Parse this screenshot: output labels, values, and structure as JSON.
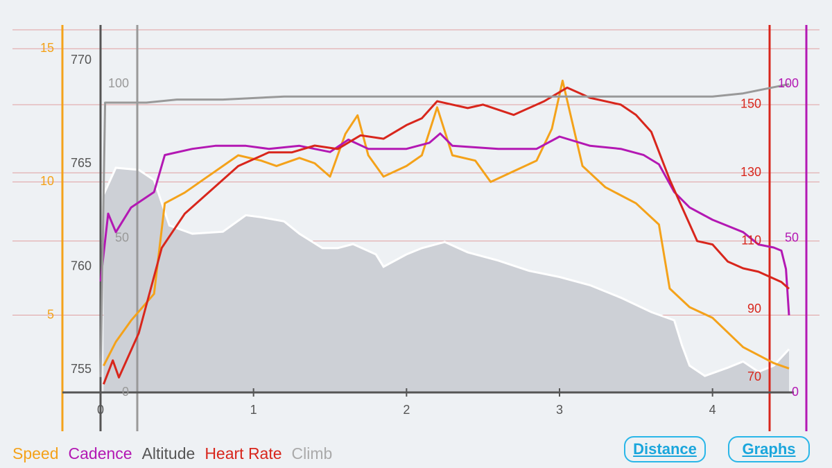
{
  "legend": [
    {
      "label": "Speed",
      "color": "#f4a21a"
    },
    {
      "label": "Cadence",
      "color": "#b318b3"
    },
    {
      "label": "Altitude",
      "color": "#555555"
    },
    {
      "label": "Heart Rate",
      "color": "#d8261c"
    },
    {
      "label": "Climb",
      "color": "#aaaaaa"
    }
  ],
  "buttons": {
    "distance": "Distance",
    "graphs": "Graphs"
  },
  "colors": {
    "speed": "#f4a21a",
    "cadence": "#b318b3",
    "altitude_axis": "#555555",
    "heart_rate": "#d8261c",
    "climb": "#999999",
    "altitude_fill": "#cdd0d6",
    "gridline": "#e0a0a0"
  },
  "chart_data": {
    "type": "line",
    "x": {
      "label": "",
      "unit": "km",
      "range": [
        0,
        4.5
      ],
      "ticks": [
        0,
        1,
        2,
        3,
        4
      ],
      "tick_labels": [
        "0",
        "1",
        "2",
        "3",
        "4"
      ]
    },
    "axes": {
      "speed": {
        "range": [
          2.1,
          16.1
        ],
        "ticks": [
          5,
          10,
          15
        ],
        "tick_labels": [
          "5",
          "10",
          "15"
        ]
      },
      "altitude": {
        "range": [
          753.9,
          772
        ],
        "ticks": [
          755,
          760,
          765,
          770
        ],
        "tick_labels": [
          "755",
          "760",
          "765",
          "770"
        ]
      },
      "climb": {
        "range": [
          0,
          121
        ],
        "ticks": [
          0,
          50,
          100
        ],
        "tick_labels": [
          "0",
          "50",
          "100"
        ]
      },
      "heart_rate": {
        "range": [
          65.6,
          175
        ],
        "ticks": [
          70,
          90,
          110,
          130,
          150
        ],
        "tick_labels": [
          "70",
          "90",
          "110",
          "130",
          "150"
        ]
      },
      "cadence": {
        "range": [
          0,
          121
        ],
        "ticks": [
          0,
          50,
          100
        ],
        "tick_labels": [
          "0",
          "50",
          "100"
        ]
      }
    },
    "series": [
      {
        "name": "Speed",
        "axis": "speed",
        "points": [
          [
            0.02,
            3.1
          ],
          [
            0.1,
            4.0
          ],
          [
            0.2,
            4.8
          ],
          [
            0.35,
            5.8
          ],
          [
            0.42,
            9.2
          ],
          [
            0.55,
            9.6
          ],
          [
            0.7,
            10.2
          ],
          [
            0.9,
            11.0
          ],
          [
            1.05,
            10.8
          ],
          [
            1.15,
            10.6
          ],
          [
            1.3,
            10.9
          ],
          [
            1.4,
            10.7
          ],
          [
            1.5,
            10.2
          ],
          [
            1.6,
            11.8
          ],
          [
            1.68,
            12.5
          ],
          [
            1.75,
            11.0
          ],
          [
            1.85,
            10.2
          ],
          [
            2.0,
            10.6
          ],
          [
            2.1,
            11.0
          ],
          [
            2.2,
            12.8
          ],
          [
            2.3,
            11.0
          ],
          [
            2.45,
            10.8
          ],
          [
            2.55,
            10.0
          ],
          [
            2.7,
            10.4
          ],
          [
            2.85,
            10.8
          ],
          [
            2.95,
            12.0
          ],
          [
            3.02,
            13.8
          ],
          [
            3.15,
            10.6
          ],
          [
            3.3,
            9.8
          ],
          [
            3.5,
            9.2
          ],
          [
            3.65,
            8.4
          ],
          [
            3.72,
            6.0
          ],
          [
            3.85,
            5.3
          ],
          [
            4.0,
            4.9
          ],
          [
            4.2,
            3.8
          ],
          [
            4.4,
            3.2
          ],
          [
            4.5,
            3.0
          ]
        ]
      },
      {
        "name": "Altitude",
        "axis": "altitude",
        "points": [
          [
            0.02,
            763.5
          ],
          [
            0.1,
            764.8
          ],
          [
            0.25,
            764.7
          ],
          [
            0.35,
            764.2
          ],
          [
            0.45,
            762.0
          ],
          [
            0.6,
            761.6
          ],
          [
            0.8,
            761.7
          ],
          [
            0.95,
            762.5
          ],
          [
            1.05,
            762.4
          ],
          [
            1.2,
            762.2
          ],
          [
            1.3,
            761.6
          ],
          [
            1.45,
            760.9
          ],
          [
            1.55,
            760.9
          ],
          [
            1.65,
            761.1
          ],
          [
            1.8,
            760.6
          ],
          [
            1.85,
            760.0
          ],
          [
            2.0,
            760.6
          ],
          [
            2.1,
            760.9
          ],
          [
            2.25,
            761.2
          ],
          [
            2.4,
            760.7
          ],
          [
            2.6,
            760.3
          ],
          [
            2.8,
            759.8
          ],
          [
            3.0,
            759.5
          ],
          [
            3.2,
            759.1
          ],
          [
            3.4,
            758.5
          ],
          [
            3.6,
            757.8
          ],
          [
            3.75,
            757.4
          ],
          [
            3.8,
            756.2
          ],
          [
            3.85,
            755.2
          ],
          [
            3.95,
            754.7
          ],
          [
            4.1,
            755.1
          ],
          [
            4.2,
            755.4
          ],
          [
            4.3,
            754.9
          ],
          [
            4.4,
            755.2
          ],
          [
            4.5,
            756.0
          ]
        ]
      },
      {
        "name": "Heart Rate",
        "axis": "heart_rate",
        "points": [
          [
            0.02,
            68
          ],
          [
            0.08,
            75
          ],
          [
            0.12,
            70
          ],
          [
            0.25,
            83
          ],
          [
            0.4,
            108
          ],
          [
            0.55,
            118
          ],
          [
            0.75,
            126
          ],
          [
            0.9,
            132
          ],
          [
            1.0,
            134
          ],
          [
            1.1,
            136
          ],
          [
            1.25,
            136
          ],
          [
            1.4,
            138
          ],
          [
            1.55,
            137
          ],
          [
            1.7,
            141
          ],
          [
            1.85,
            140
          ],
          [
            2.0,
            144
          ],
          [
            2.1,
            146
          ],
          [
            2.2,
            151
          ],
          [
            2.4,
            149
          ],
          [
            2.5,
            150
          ],
          [
            2.7,
            147
          ],
          [
            2.9,
            151
          ],
          [
            3.05,
            155
          ],
          [
            3.2,
            152
          ],
          [
            3.4,
            150
          ],
          [
            3.5,
            147
          ],
          [
            3.6,
            142
          ],
          [
            3.72,
            128
          ],
          [
            3.8,
            120
          ],
          [
            3.9,
            110
          ],
          [
            4.0,
            109
          ],
          [
            4.1,
            104
          ],
          [
            4.2,
            102
          ],
          [
            4.3,
            101
          ],
          [
            4.45,
            98
          ],
          [
            4.5,
            96
          ]
        ]
      },
      {
        "name": "Cadence",
        "axis": "cadence",
        "points": [
          [
            0.0,
            36
          ],
          [
            0.05,
            58
          ],
          [
            0.1,
            52
          ],
          [
            0.2,
            60
          ],
          [
            0.35,
            65
          ],
          [
            0.42,
            77
          ],
          [
            0.6,
            79
          ],
          [
            0.75,
            80
          ],
          [
            0.95,
            80
          ],
          [
            1.1,
            79
          ],
          [
            1.3,
            80
          ],
          [
            1.5,
            78
          ],
          [
            1.62,
            82
          ],
          [
            1.75,
            79
          ],
          [
            2.0,
            79
          ],
          [
            2.15,
            81
          ],
          [
            2.22,
            84
          ],
          [
            2.3,
            80
          ],
          [
            2.6,
            79
          ],
          [
            2.85,
            79
          ],
          [
            3.0,
            83
          ],
          [
            3.2,
            80
          ],
          [
            3.4,
            79
          ],
          [
            3.55,
            77
          ],
          [
            3.65,
            74
          ],
          [
            3.75,
            65
          ],
          [
            3.85,
            60
          ],
          [
            4.0,
            56
          ],
          [
            4.1,
            54
          ],
          [
            4.2,
            52
          ],
          [
            4.3,
            48
          ],
          [
            4.4,
            47
          ],
          [
            4.45,
            46
          ],
          [
            4.48,
            40
          ],
          [
            4.5,
            25
          ]
        ]
      },
      {
        "name": "Climb",
        "axis": "climb",
        "points": [
          [
            0.0,
            5
          ],
          [
            0.03,
            94
          ],
          [
            0.3,
            94
          ],
          [
            0.5,
            95
          ],
          [
            0.8,
            95
          ],
          [
            1.2,
            96
          ],
          [
            1.5,
            96
          ],
          [
            2.0,
            96
          ],
          [
            2.5,
            96
          ],
          [
            3.0,
            96
          ],
          [
            3.5,
            96
          ],
          [
            4.0,
            96
          ],
          [
            4.2,
            97
          ],
          [
            4.4,
            99
          ],
          [
            4.5,
            100
          ]
        ]
      }
    ],
    "grid": true,
    "legend_position": "bottom-left"
  }
}
